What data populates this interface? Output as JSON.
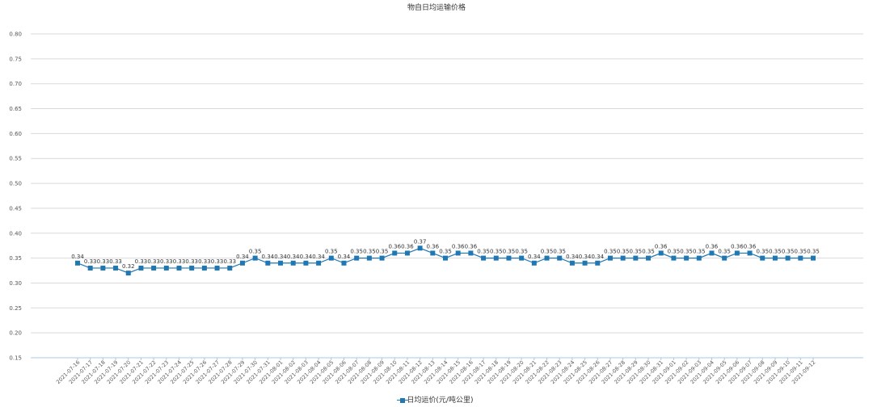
{
  "chart_data": {
    "type": "line",
    "title": "物自日均运输价格",
    "ylim": [
      0.15,
      0.8
    ],
    "yticks": [
      "0.15",
      "0.20",
      "0.25",
      "0.30",
      "0.35",
      "0.40",
      "0.45",
      "0.50",
      "0.55",
      "0.60",
      "0.65",
      "0.70",
      "0.75",
      "0.80"
    ],
    "grid": true,
    "legend_position": "bottom",
    "x": [
      "2021-07-16",
      "2021-07-17",
      "2021-07-18",
      "2021-07-19",
      "2021-07-20",
      "2021-07-21",
      "2021-07-22",
      "2021-07-23",
      "2021-07-24",
      "2021-07-25",
      "2021-07-26",
      "2021-07-27",
      "2021-07-28",
      "2021-07-29",
      "2021-07-30",
      "2021-07-31",
      "2021-08-01",
      "2021-08-02",
      "2021-08-03",
      "2021-08-04",
      "2021-08-05",
      "2021-08-06",
      "2021-08-07",
      "2021-08-08",
      "2021-08-09",
      "2021-08-10",
      "2021-08-11",
      "2021-08-12",
      "2021-08-13",
      "2021-08-14",
      "2021-08-15",
      "2021-08-16",
      "2021-08-17",
      "2021-08-18",
      "2021-08-19",
      "2021-08-20",
      "2021-08-21",
      "2021-08-22",
      "2021-08-23",
      "2021-08-24",
      "2021-08-25",
      "2021-08-26",
      "2021-08-27",
      "2021-08-28",
      "2021-08-29",
      "2021-08-30",
      "2021-08-31",
      "2021-09-01",
      "2021-09-02",
      "2021-09-03",
      "2021-09-04",
      "2021-09-05",
      "2021-09-06",
      "2021-09-07",
      "2021-09-08",
      "2021-09-09",
      "2021-09-10",
      "2021-09-11",
      "2021-09-12"
    ],
    "series": [
      {
        "name": "日均运价(元/吨公里)",
        "color": "#1f77b4",
        "values": [
          0.34,
          0.33,
          0.33,
          0.33,
          0.32,
          0.33,
          0.33,
          0.33,
          0.33,
          0.33,
          0.33,
          0.33,
          0.33,
          0.34,
          0.35,
          0.34,
          0.34,
          0.34,
          0.34,
          0.34,
          0.35,
          0.34,
          0.35,
          0.35,
          0.35,
          0.36,
          0.36,
          0.37,
          0.36,
          0.35,
          0.36,
          0.36,
          0.35,
          0.35,
          0.35,
          0.35,
          0.34,
          0.35,
          0.35,
          0.34,
          0.34,
          0.34,
          0.35,
          0.35,
          0.35,
          0.35,
          0.36,
          0.35,
          0.35,
          0.35,
          0.36,
          0.35,
          0.36,
          0.36,
          0.35,
          0.35,
          0.35,
          0.35,
          0.35
        ],
        "labels": [
          "0.34",
          "0.33",
          "0.33",
          "0.33",
          "0.32",
          "0.33",
          "0.33",
          "0.33",
          "0.33",
          "0.33",
          "0.33",
          "0.33",
          "0.33",
          "0.34",
          "0.35",
          "0.34",
          "0.34",
          "0.34",
          "0.34",
          "0.34",
          "0.35",
          "0.34",
          "0.35",
          "0.35",
          "0.35",
          "0.36",
          "0.36",
          "0.37",
          "0.36",
          "0.35",
          "0.36",
          "0.36",
          "0.35",
          "0.35",
          "0.35",
          "0.35",
          "0.34",
          "0.35",
          "0.35",
          "0.34",
          "0.34",
          "0.34",
          "0.35",
          "0.35",
          "0.35",
          "0.35",
          "0.36",
          "0.35",
          "0.35",
          "0.35",
          "0.36",
          "0.35",
          "0.36",
          "0.36",
          "0.35",
          "0.35",
          "0.35",
          "0.35",
          "0.35"
        ]
      }
    ]
  }
}
